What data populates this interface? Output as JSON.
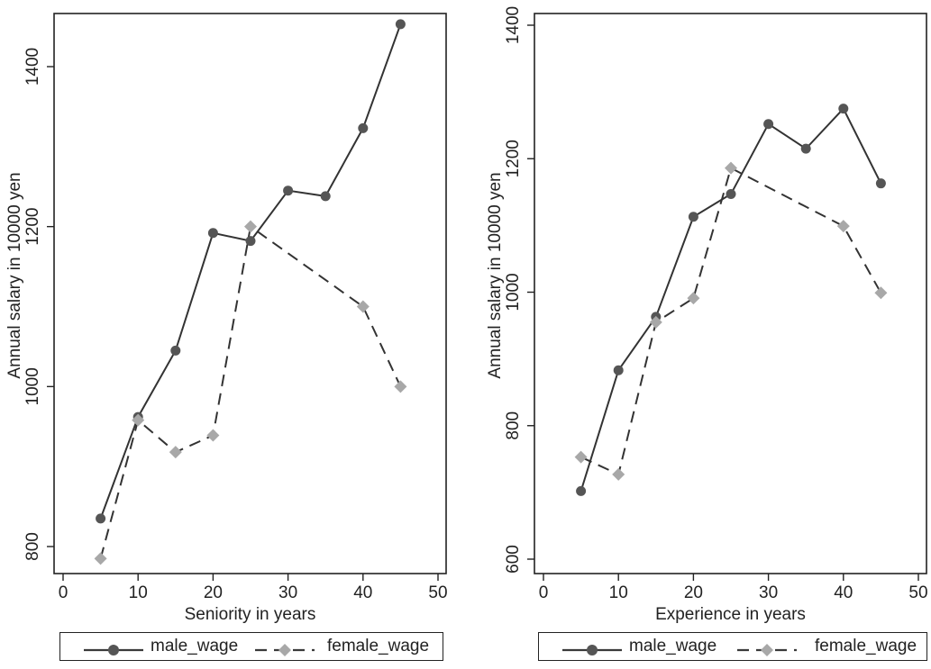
{
  "colors": {
    "male": "#3a3a3a",
    "female": "#a8a8a8",
    "axis": "#222222"
  },
  "chart_data": [
    {
      "type": "line",
      "title": "",
      "xlabel": "Seniority in years",
      "ylabel": "Annual salary in 10000 yen",
      "xlim": [
        0,
        50
      ],
      "ylim": [
        790,
        1460
      ],
      "x_ticks": [
        0,
        10,
        20,
        30,
        40,
        50
      ],
      "y_ticks": [
        800,
        1000,
        1200,
        1400
      ],
      "grid": false,
      "legend_position": "bottom",
      "series": [
        {
          "name": "male_wage",
          "style": "solid",
          "marker": "circle",
          "x": [
            5,
            10,
            15,
            20,
            25,
            30,
            35,
            40,
            45
          ],
          "y": [
            835,
            962,
            1045,
            1192,
            1182,
            1245,
            1238,
            1323,
            1453
          ]
        },
        {
          "name": "female_wage",
          "style": "dashed",
          "marker": "diamond",
          "x": [
            5,
            10,
            15,
            20,
            25,
            40,
            45
          ],
          "y": [
            785,
            958,
            918,
            939,
            1200,
            1100,
            1000
          ]
        }
      ]
    },
    {
      "type": "line",
      "title": "",
      "xlabel": "Experience in years",
      "ylabel": "Annual salary in 10000 yen",
      "xlim": [
        0,
        50
      ],
      "ylim": [
        600,
        1415
      ],
      "x_ticks": [
        0,
        10,
        20,
        30,
        40,
        50
      ],
      "y_ticks": [
        600,
        800,
        1000,
        1200,
        1400
      ],
      "grid": false,
      "legend_position": "bottom",
      "series": [
        {
          "name": "male_wage",
          "style": "solid",
          "marker": "circle",
          "x": [
            5,
            10,
            15,
            20,
            25,
            30,
            35,
            40,
            45
          ],
          "y": [
            702,
            883,
            963,
            1113,
            1147,
            1252,
            1215,
            1275,
            1163
          ]
        },
        {
          "name": "female_wage",
          "style": "dashed",
          "marker": "diamond",
          "x": [
            5,
            10,
            15,
            20,
            25,
            40,
            45
          ],
          "y": [
            753,
            727,
            955,
            991,
            1186,
            1099,
            999
          ]
        }
      ]
    }
  ]
}
